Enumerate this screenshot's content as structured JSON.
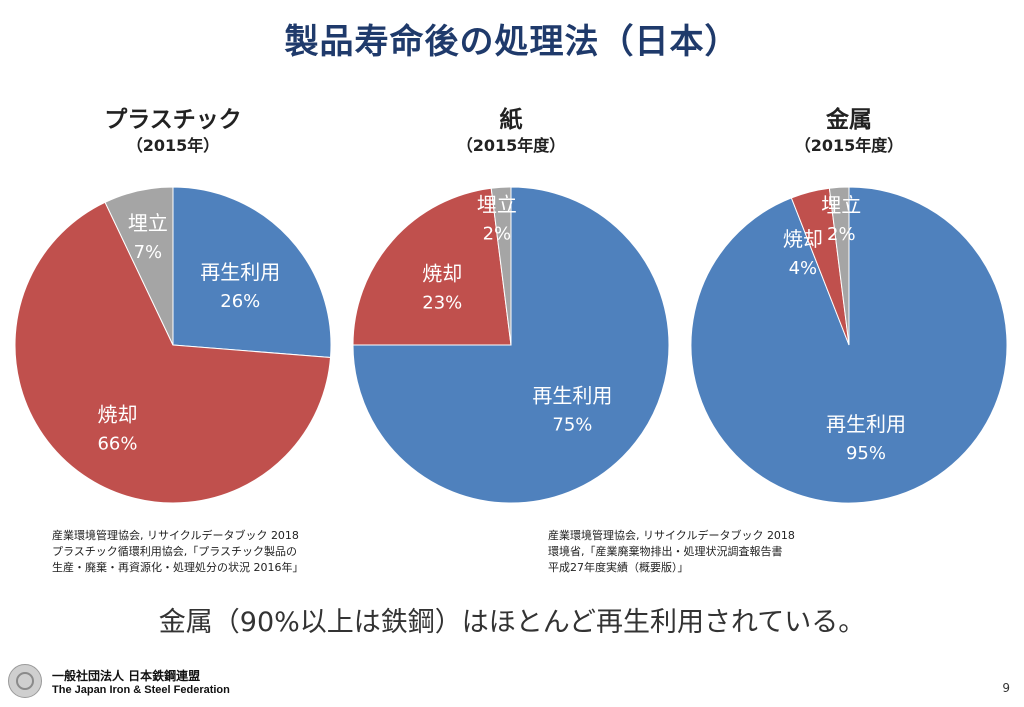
{
  "title": "製品寿命後の処理法（日本）",
  "colors": {
    "recycle": "#4f81bd",
    "incinerate": "#c0504d",
    "landfill": "#a5a5a5",
    "title": "#1f3a6b"
  },
  "chart_data": [
    {
      "type": "pie",
      "title": "プラスチック",
      "subtitle": "（2015年）",
      "slices": [
        {
          "label": "再生利用",
          "value": 26,
          "display": "26%"
        },
        {
          "label": "焼却",
          "value": 66,
          "display": "66%"
        },
        {
          "label": "埋立",
          "value": 7,
          "display": "7%"
        }
      ]
    },
    {
      "type": "pie",
      "title": "紙",
      "subtitle": "（2015年度）",
      "slices": [
        {
          "label": "再生利用",
          "value": 75,
          "display": "75%"
        },
        {
          "label": "焼却",
          "value": 23,
          "display": "23%"
        },
        {
          "label": "埋立",
          "value": 2,
          "display": "2%"
        }
      ]
    },
    {
      "type": "pie",
      "title": "金属",
      "subtitle": "（2015年度）",
      "slices": [
        {
          "label": "再生利用",
          "value": 95,
          "display": "95%"
        },
        {
          "label": "焼却",
          "value": 4,
          "display": "4%"
        },
        {
          "label": "埋立",
          "value": 2,
          "display": "2%"
        }
      ]
    }
  ],
  "sources": {
    "left": "産業環境管理協会, リサイクルデータブック 2018\nプラスチック循環利用協会,「プラスチック製品の\n生産・廃棄・再資源化・処理処分の状況 2016年」",
    "right": "産業環境管理協会, リサイクルデータブック 2018\n環境省,「産業廃棄物排出・処理状況調査報告書\n平成27年度実績（概要版）」"
  },
  "conclusion": "金属（90%以上は鉄鋼）はほとんど再生利用されている。",
  "footer": {
    "org_ja": "一般社団法人 日本鉄鋼連盟",
    "org_en": "The Japan Iron & Steel Federation",
    "logo_icon": "federation-logo-icon"
  },
  "page_number": "9"
}
